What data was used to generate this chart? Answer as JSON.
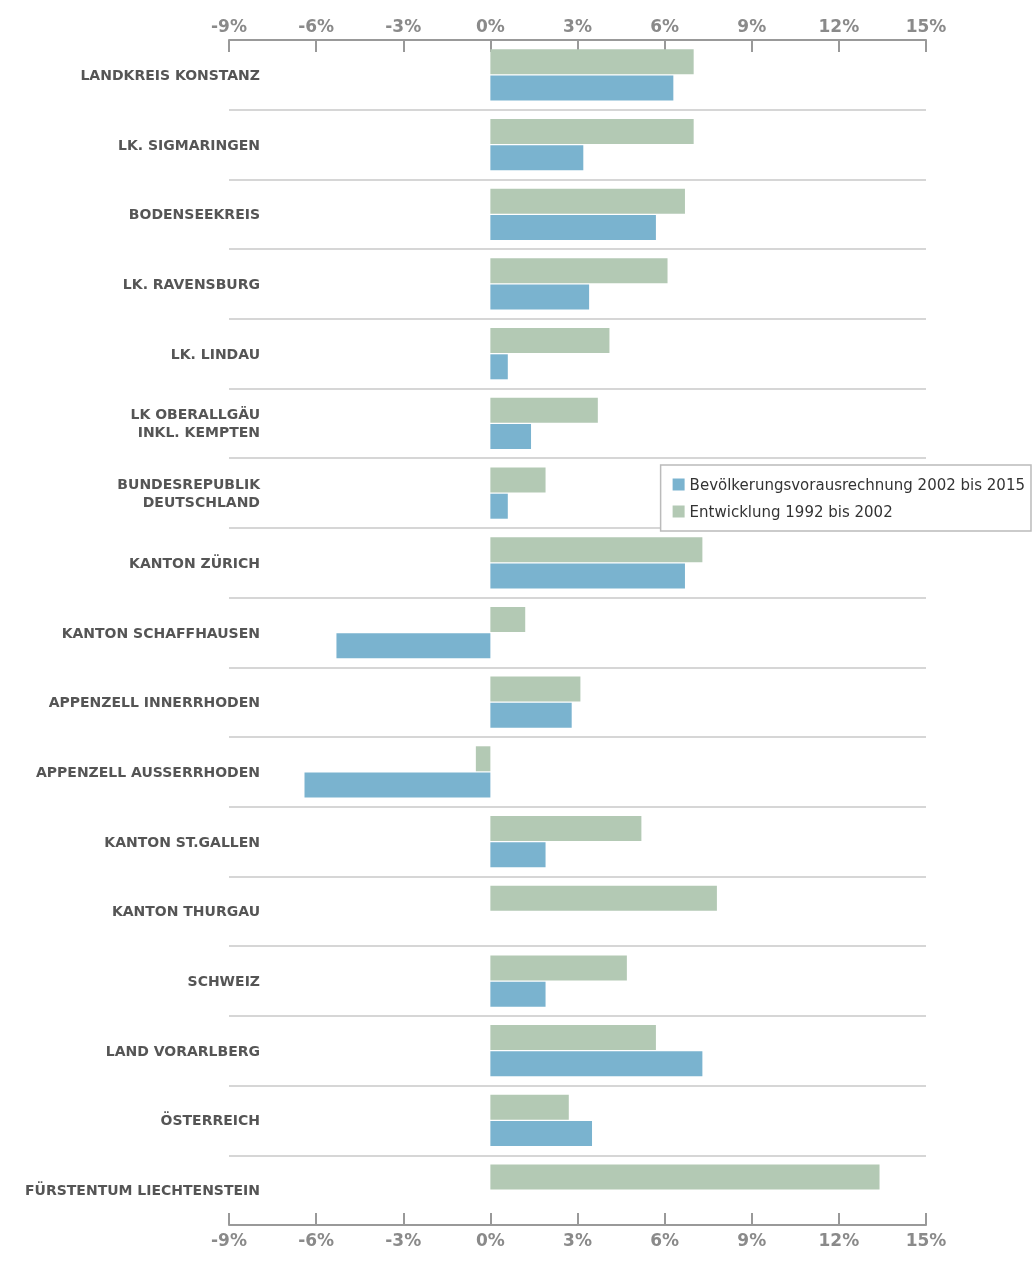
{
  "chart_data": {
    "type": "bar",
    "orientation": "horizontal",
    "categories": [
      "LANDKREIS KONSTANZ",
      "LK. SIGMARINGEN",
      "BODENSEEKREIS",
      "LK. RAVENSBURG",
      "LK. LINDAU",
      "LK OBERALLGÄU\nINKL. KEMPTEN",
      "BUNDESREPUBLIK\nDEUTSCHLAND",
      "KANTON ZÜRICH",
      "KANTON SCHAFFHAUSEN",
      "APPENZELL INNERRHODEN",
      "APPENZELL AUSSERRHODEN",
      "KANTON ST.GALLEN",
      "KANTON THURGAU",
      "SCHWEIZ",
      "LAND VORARLBERG",
      "ÖSTERREICH",
      "FÜRSTENTUM LIECHTENSTEIN"
    ],
    "series": [
      {
        "name": "Bevölkerungsvorausrechnung 2002 bis 2015",
        "color": "#7ab3cf",
        "values": [
          6.3,
          3.2,
          5.7,
          3.4,
          0.6,
          1.4,
          0.6,
          6.7,
          -5.3,
          2.8,
          -6.4,
          1.9,
          null,
          1.9,
          7.3,
          3.5,
          null
        ]
      },
      {
        "name": "Entwicklung 1992 bis 2002",
        "color": "#b3c9b4",
        "values": [
          7.0,
          7.0,
          6.7,
          6.1,
          4.1,
          3.7,
          1.9,
          7.3,
          1.2,
          3.1,
          -0.5,
          5.2,
          7.8,
          4.7,
          5.7,
          2.7,
          13.4
        ]
      }
    ],
    "xlim": [
      -9,
      15
    ],
    "xticks": [
      {
        "value": -9,
        "label": "-9%"
      },
      {
        "value": -6,
        "label": "-6%"
      },
      {
        "value": -3,
        "label": "-3%"
      },
      {
        "value": 0,
        "label": "0%"
      },
      {
        "value": 3,
        "label": "3%"
      },
      {
        "value": 6,
        "label": "6%"
      },
      {
        "value": 9,
        "label": "9%"
      },
      {
        "value": 12,
        "label": "12%"
      },
      {
        "value": 15,
        "label": "15%"
      }
    ],
    "x2lim": [
      -9,
      15
    ],
    "x2ticks": [
      {
        "value": -9,
        "label": "-9%"
      },
      {
        "value": -6,
        "label": "-6%"
      },
      {
        "value": -3,
        "label": "-3%"
      },
      {
        "value": 0,
        "label": "0%"
      },
      {
        "value": 3,
        "label": "3%"
      },
      {
        "value": 6,
        "label": "6%"
      },
      {
        "value": 9,
        "label": "9%"
      },
      {
        "value": 12,
        "label": "12%"
      },
      {
        "value": 15,
        "label": "15%"
      }
    ],
    "grid": "y",
    "legend": "right"
  }
}
